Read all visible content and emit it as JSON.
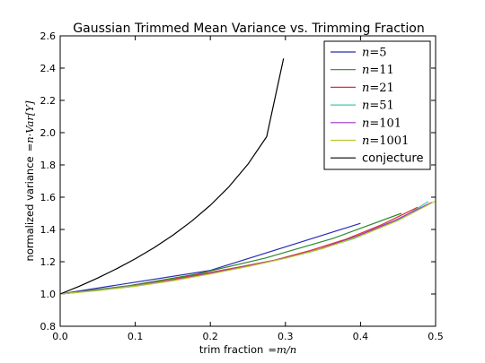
{
  "chart_data": {
    "type": "line",
    "title": "Gaussian Trimmed Mean Variance vs. Trimming Fraction",
    "xlabel": "trim fraction",
    "xlabel_math": "=m/n",
    "ylabel": "normalized variance",
    "ylabel_math": "=n·Var[Y]",
    "xlim": [
      0.0,
      0.5
    ],
    "ylim": [
      0.8,
      2.6
    ],
    "xticks": [
      0.0,
      0.1,
      0.2,
      0.3,
      0.4,
      0.5
    ],
    "xtick_labels": [
      "0.0",
      "0.1",
      "0.2",
      "0.3",
      "0.4",
      "0.5"
    ],
    "yticks": [
      0.8,
      1.0,
      1.2,
      1.4,
      1.6,
      1.8,
      2.0,
      2.2,
      2.4,
      2.6
    ],
    "ytick_labels": [
      "0.8",
      "1.0",
      "1.2",
      "1.4",
      "1.6",
      "1.8",
      "2.0",
      "2.2",
      "2.4",
      "2.6"
    ],
    "grid": false,
    "legend_position": "top-right",
    "series": [
      {
        "name": "n=5",
        "label_var": "n",
        "label_val": "=5",
        "color": "#2b2bb8",
        "x": [
          0.0,
          0.2,
          0.4
        ],
        "y": [
          1.0,
          1.146,
          1.438
        ]
      },
      {
        "name": "n=11",
        "label_var": "n",
        "label_val": "=11",
        "color": "#2a8a2a",
        "x": [
          0.0,
          0.0909,
          0.1818,
          0.2727,
          0.3636,
          0.4545
        ],
        "y": [
          1.0,
          1.051,
          1.123,
          1.222,
          1.345,
          1.5
        ]
      },
      {
        "name": "n=21",
        "label_var": "n",
        "label_val": "=21",
        "color": "#e03030",
        "x": [
          0.0,
          0.0476,
          0.0952,
          0.1429,
          0.1905,
          0.2381,
          0.2857,
          0.3333,
          0.381,
          0.4286,
          0.4762
        ],
        "y": [
          1.0,
          1.023,
          1.05,
          1.085,
          1.125,
          1.167,
          1.21,
          1.27,
          1.34,
          1.43,
          1.538
        ]
      },
      {
        "name": "n=51",
        "label_var": "n",
        "label_val": "=51",
        "color": "#3cc8b4",
        "x": [
          0.0,
          0.0392,
          0.098,
          0.1569,
          0.2157,
          0.2745,
          0.3333,
          0.3922,
          0.451,
          0.4902
        ],
        "y": [
          1.0,
          1.018,
          1.05,
          1.09,
          1.142,
          1.196,
          1.26,
          1.345,
          1.46,
          1.573
        ]
      },
      {
        "name": "n=101",
        "label_var": "n",
        "label_val": "=101",
        "color": "#9b30c8",
        "x": [
          0.0,
          0.0495,
          0.099,
          0.1485,
          0.198,
          0.2475,
          0.297,
          0.3465,
          0.396,
          0.4455,
          0.495
        ],
        "y": [
          1.0,
          1.022,
          1.048,
          1.083,
          1.125,
          1.171,
          1.22,
          1.28,
          1.36,
          1.455,
          1.568
        ]
      },
      {
        "name": "n=1001",
        "label_var": "n",
        "label_val": "=1001",
        "color": "#b8cc2a",
        "x": [
          0.0,
          0.05,
          0.1,
          0.15,
          0.2,
          0.25,
          0.3,
          0.35,
          0.4,
          0.45,
          0.4995
        ],
        "y": [
          1.0,
          1.021,
          1.048,
          1.082,
          1.124,
          1.17,
          1.221,
          1.282,
          1.36,
          1.455,
          1.575
        ]
      },
      {
        "name": "conjecture",
        "label_var": "",
        "label_val": "conjecture",
        "color": "#000000",
        "x": [
          0.0,
          0.025,
          0.05,
          0.075,
          0.1,
          0.125,
          0.15,
          0.175,
          0.2,
          0.225,
          0.25,
          0.275,
          0.2975
        ],
        "y": [
          1.0,
          1.047,
          1.099,
          1.156,
          1.218,
          1.287,
          1.364,
          1.451,
          1.55,
          1.666,
          1.804,
          1.975,
          2.46
        ]
      }
    ]
  }
}
